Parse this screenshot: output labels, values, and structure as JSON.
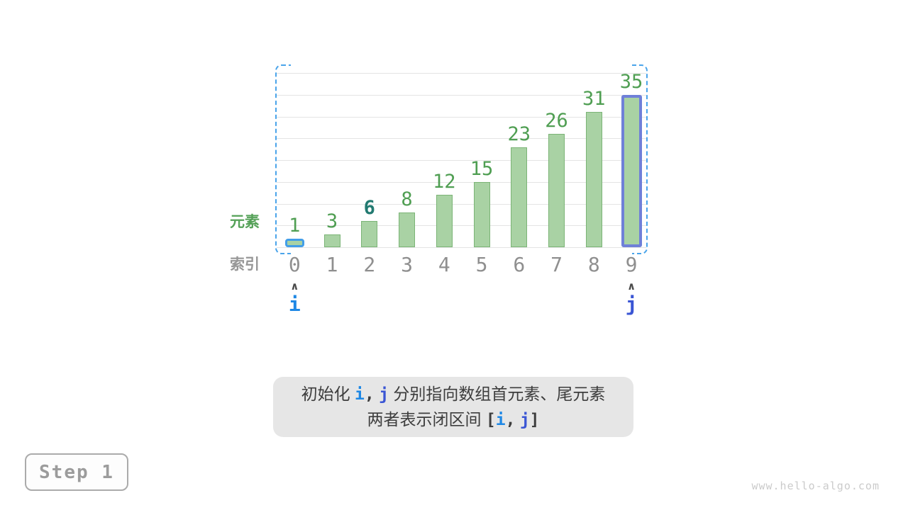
{
  "chart_data": {
    "type": "bar",
    "categories": [
      "0",
      "1",
      "2",
      "3",
      "4",
      "5",
      "6",
      "7",
      "8",
      "9"
    ],
    "values": [
      1,
      3,
      6,
      8,
      12,
      15,
      23,
      26,
      31,
      35
    ],
    "title": "",
    "xlabel": "索引",
    "ylabel": "元素",
    "ylim": [
      0,
      40
    ],
    "gridline_step": 5,
    "grid": "horizontal-only",
    "legend": "none",
    "highlighted_value_index": 2,
    "highlighted_value": 6,
    "i_outlined_bar_index": 0,
    "j_outlined_bar_index": 9,
    "range_bracket": {
      "from_index": 0,
      "to_index": 9,
      "style": "dashed"
    }
  },
  "pointers": [
    {
      "label": "i",
      "index": 0,
      "color_key": "pointer_i"
    },
    {
      "label": "j",
      "index": 9,
      "color_key": "pointer_j"
    }
  ],
  "icons": {
    "caret_up": "∧"
  },
  "axis": {
    "y_label": "元素",
    "x_label": "索引"
  },
  "caption": {
    "line1": [
      {
        "t": "初始化 "
      },
      {
        "t": "i",
        "c": "pointer_i",
        "mono": true
      },
      {
        "t": ",",
        "mono": true
      },
      {
        "t": " "
      },
      {
        "t": "j",
        "c": "pointer_j",
        "mono": true
      },
      {
        "t": " 分别指向数组首元素、尾元素"
      }
    ],
    "line2": [
      {
        "t": "两者表示闭区间 "
      },
      {
        "t": "[",
        "mono": true
      },
      {
        "t": "i",
        "c": "pointer_i",
        "mono": true
      },
      {
        "t": ",",
        "mono": true
      },
      {
        "t": " "
      },
      {
        "t": "j",
        "c": "pointer_j",
        "mono": true
      },
      {
        "t": "]",
        "mono": true
      }
    ]
  },
  "step_badge": {
    "label": "Step 1"
  },
  "watermark": "www.hello-algo.com",
  "colors": {
    "bar_fill": "#a9d2a4",
    "bar_border": "#7bb476",
    "value_text": "#4f9e52",
    "highlight_value_text": "#227a71",
    "index_text": "#8f8f8f",
    "y_label_text": "#55a158",
    "x_label_text": "#979797",
    "pointer_i": "#1e88e5",
    "pointer_j": "#3a55d4",
    "caret": "#4a4a4a",
    "i_bar_outline": "#429ee8",
    "j_bar_outline": "#6f80d8",
    "range_dashed": "#4aa4ea",
    "gridline": "#e4e4e4",
    "caption_bg": "#e6e6e6",
    "caption_text": "#3d3d3d",
    "step_text": "#9c9c9c",
    "step_border": "#ababab",
    "step_bg": "#fdfdfd",
    "watermark": "#cbcbcb",
    "background": "#ffffff"
  }
}
